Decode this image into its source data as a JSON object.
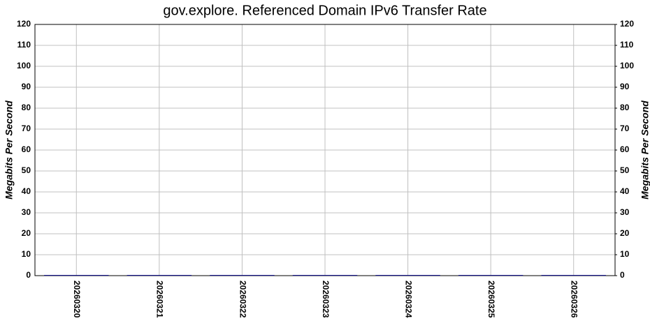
{
  "chart_data": {
    "type": "bar",
    "title": "gov.explore. Referenced Domain IPv6 Transfer Rate",
    "ylabel": "Megabits Per Second",
    "y2label": "Megabits Per Second",
    "categories": [
      "20260320",
      "20260321",
      "20260322",
      "20260323",
      "20260324",
      "20260325",
      "20260326"
    ],
    "values": [
      0.3,
      0.3,
      0.3,
      0.3,
      0.3,
      0.3,
      0.3
    ],
    "color": "#000080",
    "ylim": [
      0,
      120
    ],
    "yticks": [
      0,
      10,
      20,
      30,
      40,
      50,
      60,
      70,
      80,
      90,
      100,
      110,
      120
    ],
    "y2lim": [
      0,
      120
    ],
    "y2ticks": [
      0,
      10,
      20,
      30,
      40,
      50,
      60,
      70,
      80,
      90,
      100,
      110,
      120
    ],
    "grid": true
  }
}
